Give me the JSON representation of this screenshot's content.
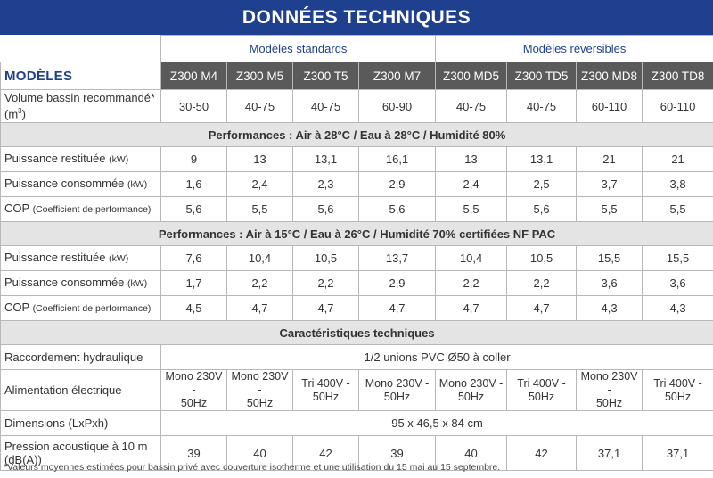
{
  "title": "DONNÉES TECHNIQUES",
  "groups": {
    "standard": "Modèles standards",
    "reversible": "Modèles réversibles"
  },
  "models_label": "MODÈLES",
  "models": [
    "Z300 M4",
    "Z300 M5",
    "Z300 T5",
    "Z300 M7",
    "Z300 MD5",
    "Z300 TD5",
    "Z300 MD8",
    "Z300 TD8"
  ],
  "volume": {
    "label": "Volume bassin recommandé* (m",
    "sup": "3",
    "close": ")",
    "values": [
      "30-50",
      "40-75",
      "40-75",
      "60-90",
      "40-75",
      "40-75",
      "60-110",
      "60-110"
    ]
  },
  "perf1": {
    "heading": "Performances : Air à 28°C / Eau à 28°C / Humidité 80%",
    "rows": [
      {
        "label": "Puissance restituée",
        "unit": "(kW)",
        "values": [
          "9",
          "13",
          "13,1",
          "16,1",
          "13",
          "13,1",
          "21",
          "21"
        ]
      },
      {
        "label": "Puissance consommée",
        "unit": "(kW)",
        "values": [
          "1,6",
          "2,4",
          "2,3",
          "2,9",
          "2,4",
          "2,5",
          "3,7",
          "3,8"
        ]
      },
      {
        "label": "COP",
        "unit": "(Coefficient de performance)",
        "values": [
          "5,6",
          "5,5",
          "5,6",
          "5,6",
          "5,5",
          "5,6",
          "5,5",
          "5,5"
        ]
      }
    ]
  },
  "perf2": {
    "heading": "Performances : Air à 15°C / Eau à 26°C / Humidité 70% certifiées NF PAC",
    "rows": [
      {
        "label": "Puissance restituée",
        "unit": "(kW)",
        "values": [
          "7,6",
          "10,4",
          "10,5",
          "13,7",
          "10,4",
          "10,5",
          "15,5",
          "15,5"
        ]
      },
      {
        "label": "Puissance consommée",
        "unit": "(kW)",
        "values": [
          "1,7",
          "2,2",
          "2,2",
          "2,9",
          "2,2",
          "2,2",
          "3,6",
          "3,6"
        ]
      },
      {
        "label": "COP",
        "unit": "(Coefficient de performance)",
        "values": [
          "4,5",
          "4,7",
          "4,7",
          "4,7",
          "4,7",
          "4,7",
          "4,3",
          "4,3"
        ]
      }
    ]
  },
  "tech": {
    "heading": "Caractéristiques techniques",
    "hydraulic": {
      "label": "Raccordement hydraulique",
      "value": "1/2 unions PVC Ø50 à coller"
    },
    "power": {
      "label": "Alimentation électrique",
      "values": [
        [
          "Mono 230V -",
          "50Hz"
        ],
        [
          "Mono 230V -",
          "50Hz"
        ],
        [
          "Tri 400V -",
          "50Hz"
        ],
        [
          "Mono 230V -",
          "50Hz"
        ],
        [
          "Mono 230V -",
          "50Hz"
        ],
        [
          "Tri 400V -",
          "50Hz"
        ],
        [
          "Mono 230V -",
          "50Hz"
        ],
        [
          "Tri 400V -",
          "50Hz"
        ]
      ]
    },
    "dimensions": {
      "label": "Dimensions (LxPxh)",
      "value": "95 x 46,5 x 84 cm"
    },
    "noise": {
      "label": "Pression acoustique à 10 m (dB(A))",
      "values": [
        "39",
        "40",
        "42",
        "39",
        "40",
        "42",
        "37,1",
        "37,1"
      ]
    }
  },
  "footnote": "*Valeurs moyennes estimées pour bassin privé avec couverture isotherme et une utilisation du 15 mai au 15 septembre."
}
